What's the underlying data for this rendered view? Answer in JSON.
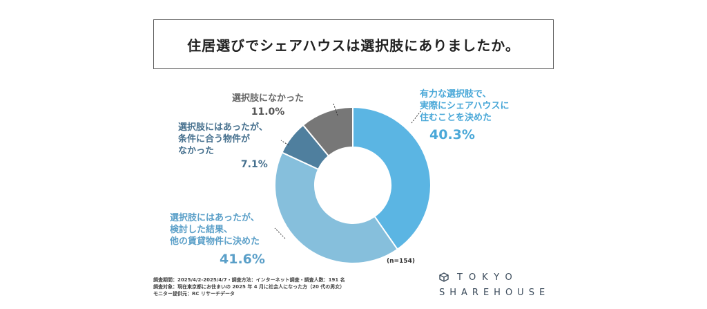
{
  "title": "住居選びでシェアハウスは選択肢にありましたか。",
  "chart_data": {
    "type": "pie",
    "variant": "donut",
    "n_label": "(n=154)",
    "slices": [
      {
        "label_lines": [
          "有力な選択肢で、",
          "実際にシェアハウスに",
          "住むことを決めた"
        ],
        "value": 40.3,
        "pct_label": "40.3%",
        "color": "#5bb5e3"
      },
      {
        "label_lines": [
          "選択肢にはあったが、",
          "検討した結果、",
          "他の賃貸物件に決めた"
        ],
        "value": 41.6,
        "pct_label": "41.6%",
        "color": "#86bfdc"
      },
      {
        "label_lines": [
          "選択肢にはあったが、",
          "条件に合う物件が",
          "なかった"
        ],
        "value": 7.1,
        "pct_label": "7.1%",
        "color": "#4f7f9e"
      },
      {
        "label_lines": [
          "選択肢になかった"
        ],
        "value": 11.0,
        "pct_label": "11.0%",
        "color": "#777777"
      }
    ]
  },
  "footnotes": [
    "調査期間：2025/4/2-2025/4/7・調査方法：インターネット調査・調査人数：191 名",
    "調査対象：現在東京都にお住まいの 2025 年 4 月に社会人になった方（20 代の男女）",
    "モニター提供元：RC リサーチデータ"
  ],
  "logo": {
    "line1": "TOKYO",
    "line2": "SHAREHOUSE",
    "mark_icon": "building-cube-icon"
  }
}
